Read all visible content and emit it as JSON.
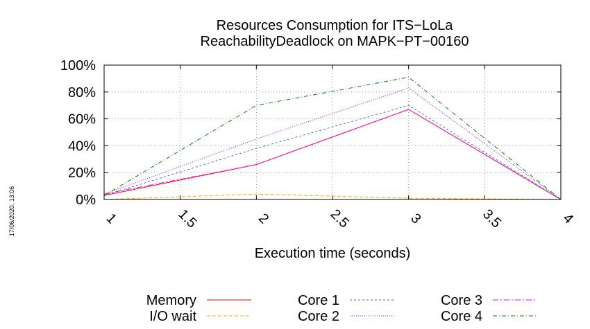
{
  "chart_data": {
    "type": "line",
    "title": "Resources Consumption for ITS−LoLa",
    "subtitle": "ReachabilityDeadlock on MAPK−PT−00160",
    "xlabel": "Execution time (seconds)",
    "ylabel": "",
    "timestamp": "17/06/2020, 13:06",
    "xlim": [
      1,
      4
    ],
    "ylim": [
      0,
      100
    ],
    "x_ticks": [
      1,
      1.5,
      2,
      2.5,
      3,
      3.5,
      4
    ],
    "x_tick_labels": [
      "1",
      "1.5",
      "2",
      "2.5",
      "3",
      "3.5",
      "4"
    ],
    "y_ticks": [
      0,
      20,
      40,
      60,
      80,
      100
    ],
    "y_tick_labels": [
      "0%",
      "20%",
      "40%",
      "60%",
      "80%",
      "100%"
    ],
    "grid": true,
    "legend_position": "bottom",
    "x": [
      1,
      2,
      3,
      4
    ],
    "series": [
      {
        "name": "Memory",
        "color": "#ff0000",
        "dash": "",
        "values": [
          3,
          26,
          67,
          0
        ]
      },
      {
        "name": "I/O wait",
        "color": "#ffa500",
        "dash": "5,3",
        "values": [
          0,
          4,
          1,
          0
        ]
      },
      {
        "name": "Core 1",
        "color": "#4169e1",
        "dash": "3,3",
        "values": [
          3,
          38,
          70,
          0
        ]
      },
      {
        "name": "Core 2",
        "color": "#9400d3",
        "dash": "1,2",
        "values": [
          4,
          45,
          83,
          0
        ]
      },
      {
        "name": "Core 3",
        "color": "#ff00ff",
        "dash": "8,3,2,3",
        "values": [
          4,
          26,
          67,
          0
        ]
      },
      {
        "name": "Core 4",
        "color": "#008000",
        "dash": "6,3,1,3",
        "values": [
          3,
          70,
          91,
          0
        ]
      }
    ]
  }
}
